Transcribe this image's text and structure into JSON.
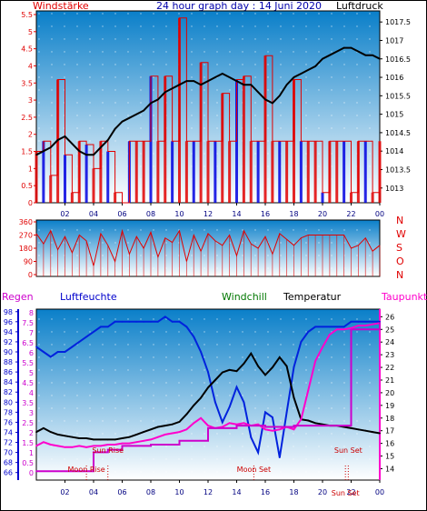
{
  "header": {
    "left_title": "Windstärke",
    "center_title": "24 hour graph day : 14 Juni 2020",
    "right_title": "Luftdruck"
  },
  "bottom_header": {
    "regen": "Regen",
    "luftfeuchte": "Luftfeuchte",
    "windchill": "Windchill",
    "temperatur": "Temperatur",
    "taupunkt": "Taupunkt"
  },
  "colors": {
    "wind_red": "#e00000",
    "wind_blue": "#0000e0",
    "pressure": "#000000",
    "humidity": "#0022dd",
    "temperature": "#000000",
    "dewpoint": "#ff00cc",
    "windchill": "#007700",
    "regen": "#cc00cc",
    "bg_top": "#0a7fc9",
    "bg_bottom": "#ffffff"
  },
  "chart_data": [
    {
      "type": "line",
      "title": "Windstärke / Luftdruck",
      "x_ticks": [
        "02",
        "04",
        "06",
        "08",
        "10",
        "12",
        "14",
        "16",
        "18",
        "20",
        "22",
        "00"
      ],
      "y_left_ticks": [
        "0",
        "0.5",
        "1",
        "1.5",
        "2",
        "2.5",
        "3",
        "3.5",
        "4",
        "4.5",
        "5",
        "5.5"
      ],
      "y_right_ticks": [
        "1013",
        "1013.5",
        "1014",
        "1014.5",
        "1015",
        "1015.5",
        "1016",
        "1016.5",
        "1017",
        "1017.5"
      ],
      "ylim_left": [
        0,
        5.5
      ],
      "ylim_right": [
        1012.6,
        1017.8
      ],
      "xlim": [
        0,
        24
      ],
      "series": [
        {
          "name": "Luftdruck",
          "axis": "right",
          "x": [
            0,
            0.5,
            1,
            1.5,
            2,
            2.5,
            3,
            3.5,
            4,
            4.5,
            5,
            5.5,
            6,
            6.5,
            7,
            7.5,
            8,
            8.5,
            9,
            9.5,
            10,
            10.5,
            11,
            11.5,
            12,
            12.5,
            13,
            13.5,
            14,
            14.5,
            15,
            15.5,
            16,
            16.5,
            17,
            17.5,
            18,
            18.5,
            19,
            19.5,
            20,
            20.5,
            21,
            21.5,
            22,
            22.5,
            23,
            23.5,
            24
          ],
          "y": [
            1013.9,
            1014.0,
            1014.1,
            1014.3,
            1014.4,
            1014.2,
            1014.0,
            1013.9,
            1013.9,
            1014.1,
            1014.3,
            1014.6,
            1014.8,
            1014.9,
            1015.0,
            1015.1,
            1015.3,
            1015.4,
            1015.6,
            1015.7,
            1015.8,
            1015.9,
            1015.9,
            1015.8,
            1015.9,
            1016.0,
            1016.1,
            1016.0,
            1015.9,
            1015.8,
            1015.8,
            1015.6,
            1015.4,
            1015.3,
            1015.5,
            1015.8,
            1016.0,
            1016.1,
            1016.2,
            1016.3,
            1016.5,
            1016.6,
            1016.7,
            1016.8,
            1016.8,
            1016.7,
            1016.6,
            1016.6,
            1016.5
          ]
        },
        {
          "name": "Windstärke",
          "axis": "left",
          "x": [
            0,
            0.5,
            1,
            1.5,
            2,
            2.5,
            3,
            3.5,
            4,
            4.5,
            5,
            5.5,
            6,
            6.5,
            7,
            7.5,
            8,
            8.5,
            9,
            9.5,
            10,
            10.5,
            11,
            11.5,
            12,
            12.5,
            13,
            13.5,
            14,
            14.5,
            15,
            15.5,
            16,
            16.5,
            17,
            17.5,
            18,
            18.5,
            19,
            19.5,
            20,
            20.5,
            21,
            21.5,
            22,
            22.5,
            23,
            23.5,
            24
          ],
          "y": [
            1.5,
            1.8,
            0.8,
            3.6,
            1.4,
            0.3,
            1.8,
            1.7,
            1.0,
            1.8,
            1.5,
            0.3,
            0.0,
            1.8,
            1.8,
            1.8,
            3.7,
            1.8,
            3.7,
            1.8,
            5.4,
            1.8,
            1.8,
            4.1,
            1.8,
            1.8,
            3.2,
            1.8,
            3.6,
            3.7,
            1.8,
            1.8,
            4.3,
            1.8,
            1.8,
            1.8,
            3.6,
            1.8,
            1.8,
            1.8,
            0.3,
            1.8,
            1.8,
            1.8,
            0.3,
            1.8,
            1.8,
            0.3,
            1.8
          ]
        }
      ]
    },
    {
      "type": "line",
      "title": "Windrichtung",
      "y_left_ticks": [
        "0",
        "90",
        "180",
        "270",
        "360"
      ],
      "y_right_labels": [
        "N",
        "W",
        "S",
        "O",
        "N"
      ],
      "ylim": [
        0,
        360
      ],
      "xlim": [
        0,
        24
      ],
      "series": [
        {
          "name": "Windrichtung",
          "x": [
            0,
            0.5,
            1,
            1.5,
            2,
            2.5,
            3,
            3.5,
            4,
            4.5,
            5,
            5.5,
            6,
            6.5,
            7,
            7.5,
            8,
            8.5,
            9,
            9.5,
            10,
            10.5,
            11,
            11.5,
            12,
            12.5,
            13,
            13.5,
            14,
            14.5,
            15,
            15.5,
            16,
            16.5,
            17,
            17.5,
            18,
            18.5,
            19,
            19.5,
            20,
            20.5,
            21,
            21.5,
            22,
            22.5,
            23,
            23.5,
            24
          ],
          "y": [
            280,
            210,
            300,
            170,
            260,
            150,
            270,
            230,
            60,
            280,
            200,
            90,
            300,
            140,
            260,
            180,
            290,
            120,
            250,
            220,
            300,
            90,
            270,
            160,
            280,
            230,
            200,
            270,
            130,
            300,
            210,
            180,
            260,
            140,
            280,
            240,
            200,
            250,
            270,
            270,
            270,
            270,
            270,
            270,
            180,
            200,
            250,
            160,
            200
          ]
        }
      ]
    },
    {
      "type": "line",
      "title": "Regen / Luftfeuchte / Windchill / Temperatur / Taupunkt",
      "x_ticks": [
        "02",
        "04",
        "06",
        "08",
        "10",
        "12",
        "14",
        "16",
        "18",
        "20",
        "22",
        "00"
      ],
      "y_regen_ticks": [
        "0",
        "0.5",
        "1",
        "1.5",
        "2",
        "2.5",
        "3",
        "3.5",
        "4",
        "4.5",
        "5",
        "5.5",
        "6",
        "6.5",
        "7",
        "7.5",
        "8"
      ],
      "y_feuchte_ticks": [
        "66",
        "68",
        "70",
        "72",
        "74",
        "76",
        "78",
        "80",
        "82",
        "84",
        "86",
        "88",
        "90",
        "92",
        "94",
        "96",
        "98"
      ],
      "y_temp_ticks": [
        "14",
        "15",
        "16",
        "17",
        "18",
        "19",
        "20",
        "21",
        "22",
        "23",
        "24",
        "25",
        "26"
      ],
      "ylim_feuchte": [
        64.5,
        98.5
      ],
      "ylim_temp": [
        13.1,
        26.6
      ],
      "xlim": [
        0,
        24
      ],
      "annotations": [
        {
          "text": "Moon Rise",
          "x": 3.5
        },
        {
          "text": "Sun Rise",
          "x": 5.0
        },
        {
          "text": "Moon Set",
          "x": 15.2
        },
        {
          "text": "Sun Set",
          "x": 21.8
        },
        {
          "text": "Sun Set",
          "x": 21.6
        }
      ],
      "series": [
        {
          "name": "Luftfeuchte",
          "axis": "feuchte",
          "x": [
            0,
            0.5,
            1,
            1.5,
            2,
            2.5,
            3,
            3.5,
            4,
            4.5,
            5,
            5.5,
            6,
            6.5,
            7,
            7.5,
            8,
            8.5,
            9,
            9.5,
            10,
            10.5,
            11,
            11.5,
            12,
            12.5,
            13,
            13.5,
            14,
            14.5,
            15,
            15.5,
            16,
            16.5,
            17,
            17.5,
            18,
            18.5,
            19,
            19.5,
            20,
            20.5,
            21,
            21.5,
            22,
            22.5,
            23,
            23.5,
            24
          ],
          "y": [
            91,
            90,
            89,
            90,
            90,
            91,
            92,
            93,
            94,
            95,
            95,
            96,
            96,
            96,
            96,
            96,
            96,
            96,
            97,
            96,
            96,
            95,
            93,
            90,
            86,
            80,
            76,
            79,
            83,
            80,
            73,
            70,
            78,
            77,
            69,
            78,
            87,
            92,
            94,
            95,
            95,
            95,
            95,
            95,
            96,
            96,
            96,
            96,
            96
          ]
        },
        {
          "name": "Temperatur",
          "axis": "temp",
          "x": [
            0,
            0.5,
            1,
            1.5,
            2,
            2.5,
            3,
            3.5,
            4,
            4.5,
            5,
            5.5,
            6,
            6.5,
            7,
            7.5,
            8,
            8.5,
            9,
            9.5,
            10,
            10.5,
            11,
            11.5,
            12,
            12.5,
            13,
            13.5,
            14,
            14.5,
            15,
            15.5,
            16,
            16.5,
            17,
            17.5,
            18,
            18.5,
            19,
            19.5,
            20,
            20.5,
            21,
            21.5,
            22,
            22.5,
            23,
            23.5,
            24
          ],
          "y": [
            16.9,
            17.2,
            16.9,
            16.7,
            16.6,
            16.5,
            16.4,
            16.4,
            16.3,
            16.3,
            16.3,
            16.3,
            16.4,
            16.5,
            16.7,
            16.9,
            17.1,
            17.3,
            17.4,
            17.5,
            17.7,
            18.3,
            19.0,
            19.6,
            20.4,
            21.0,
            21.6,
            21.8,
            21.7,
            22.3,
            23.1,
            22.1,
            21.4,
            22.0,
            22.8,
            22.1,
            19.6,
            17.9,
            17.8,
            17.6,
            17.5,
            17.4,
            17.4,
            17.3,
            17.2,
            17.1,
            17.0,
            16.9,
            16.8
          ]
        },
        {
          "name": "Taupunkt",
          "axis": "temp",
          "x": [
            0,
            0.5,
            1,
            1.5,
            2,
            2.5,
            3,
            3.5,
            4,
            4.5,
            5,
            5.5,
            6,
            6.5,
            7,
            7.5,
            8,
            8.5,
            9,
            9.5,
            10,
            10.5,
            11,
            11.5,
            12,
            12.5,
            13,
            13.5,
            14,
            14.5,
            15,
            15.5,
            16,
            16.5,
            17,
            17.5,
            18,
            18.5,
            19,
            19.5,
            20,
            20.5,
            21,
            21.5,
            22,
            22.5,
            23,
            23.5,
            24
          ],
          "y": [
            15.8,
            16.1,
            15.9,
            15.8,
            15.7,
            15.7,
            15.8,
            15.7,
            15.8,
            15.8,
            15.9,
            15.9,
            16.0,
            16.0,
            16.1,
            16.2,
            16.3,
            16.5,
            16.7,
            16.8,
            16.9,
            17.1,
            17.6,
            18.0,
            17.4,
            17.2,
            17.3,
            17.6,
            17.5,
            17.6,
            17.4,
            17.5,
            17.1,
            17.0,
            17.1,
            17.3,
            17.1,
            17.9,
            20.2,
            22.5,
            23.6,
            24.6,
            25.0,
            25.0,
            25.1,
            25.3,
            25.3,
            25.4,
            25.5
          ]
        },
        {
          "name": "Regen",
          "axis": "temp",
          "x": [
            0,
            2,
            3.5,
            4,
            5,
            6,
            8,
            10,
            12,
            14,
            16,
            18,
            20,
            22,
            24
          ],
          "y": [
            13.8,
            13.8,
            13.8,
            15.3,
            15.5,
            15.8,
            15.9,
            16.2,
            17.2,
            17.4,
            17.3,
            17.4,
            17.4,
            25.0,
            25.5
          ]
        }
      ]
    }
  ]
}
